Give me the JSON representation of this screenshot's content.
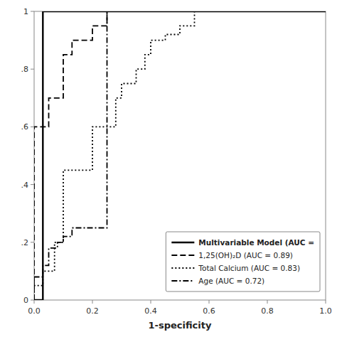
{
  "chart_data": {
    "type": "line",
    "xlabel": "1-specificity",
    "xlim": [
      0,
      1.0
    ],
    "ylim": [
      0,
      1.0
    ],
    "xticks": [
      {
        "value": 0.0,
        "label": "0.0"
      },
      {
        "value": 0.2,
        "label": "0.2"
      },
      {
        "value": 0.4,
        "label": "0.4"
      },
      {
        "value": 0.6,
        "label": "0.6"
      },
      {
        "value": 0.8,
        "label": "0.8"
      },
      {
        "value": 1.0,
        "label": "1.0"
      }
    ],
    "yticks": [
      0,
      {
        "value": 0.2,
        "label": ".2"
      },
      {
        "value": 0.4,
        "label": ".4"
      },
      {
        "value": 0.6,
        "label": ".6"
      },
      {
        "value": 0.8,
        "label": ".8"
      },
      1
    ],
    "grid": false,
    "legend": "lower right",
    "series": [
      {
        "name": "Multivariable Model (AUC =",
        "color": "#000000",
        "line_style": "solid",
        "x": [
          0.0,
          0.03,
          0.03,
          1.0
        ],
        "values": [
          0.0,
          0.0,
          1.0,
          1.0
        ]
      },
      {
        "name": "1,25(OH)₂D (AUC = 0.89)",
        "color": "#000000",
        "line_style": "dashed",
        "x": [
          0.0,
          0.0,
          0.05,
          0.05,
          0.1,
          0.1,
          0.13,
          0.13,
          0.2,
          0.2,
          0.25,
          0.25,
          1.0
        ],
        "values": [
          0.0,
          0.6,
          0.6,
          0.7,
          0.7,
          0.85,
          0.85,
          0.9,
          0.9,
          0.95,
          0.95,
          1.0,
          1.0
        ]
      },
      {
        "name": "Total Calcium (AUC = 0.83)",
        "color": "#000000",
        "line_style": "dotted",
        "x": [
          0.0,
          0.0,
          0.03,
          0.03,
          0.07,
          0.07,
          0.1,
          0.1,
          0.2,
          0.2,
          0.28,
          0.28,
          0.3,
          0.3,
          0.35,
          0.35,
          0.38,
          0.38,
          0.4,
          0.4,
          0.45,
          0.45,
          0.5,
          0.5,
          0.55,
          0.55,
          1.0
        ],
        "values": [
          0.0,
          0.05,
          0.05,
          0.1,
          0.1,
          0.2,
          0.2,
          0.45,
          0.45,
          0.6,
          0.6,
          0.7,
          0.7,
          0.75,
          0.75,
          0.8,
          0.8,
          0.85,
          0.85,
          0.9,
          0.9,
          0.92,
          0.92,
          0.95,
          0.95,
          1.0,
          1.0
        ]
      },
      {
        "name": "Age (AUC = 0.72)",
        "color": "#000000",
        "line_style": "dashdot",
        "x": [
          0.0,
          0.0,
          0.03,
          0.03,
          0.05,
          0.05,
          0.08,
          0.08,
          0.1,
          0.1,
          0.13,
          0.13,
          0.25,
          0.25,
          1.0
        ],
        "values": [
          0.0,
          0.08,
          0.08,
          0.12,
          0.12,
          0.18,
          0.18,
          0.2,
          0.2,
          0.22,
          0.22,
          0.25,
          0.25,
          1.0,
          1.0
        ]
      }
    ]
  }
}
